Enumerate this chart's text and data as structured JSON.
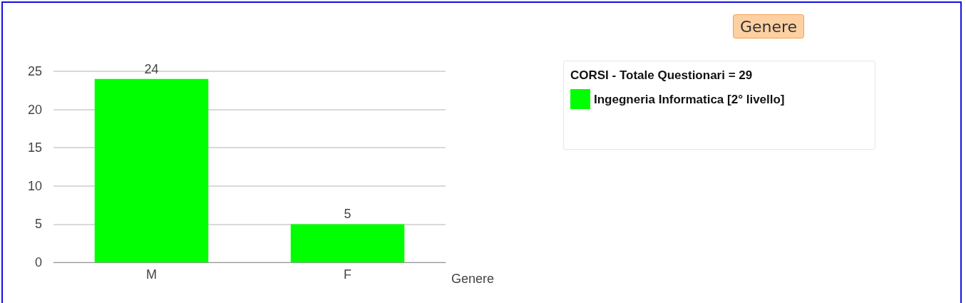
{
  "chart_data": {
    "type": "bar",
    "title": "Genere",
    "xlabel": "Genere",
    "legend_title": "CORSI - Totale Questionari = 29",
    "categories": [
      "M",
      "F"
    ],
    "series": [
      {
        "name": "Ingegneria Informatica [2° livello]",
        "color": "#00ff00",
        "values": [
          24,
          5
        ]
      }
    ],
    "ylim": [
      0,
      25
    ],
    "yticks": [
      0,
      5,
      10,
      15,
      20,
      25
    ],
    "grid": "y",
    "legend": "right",
    "data_labels": true
  }
}
